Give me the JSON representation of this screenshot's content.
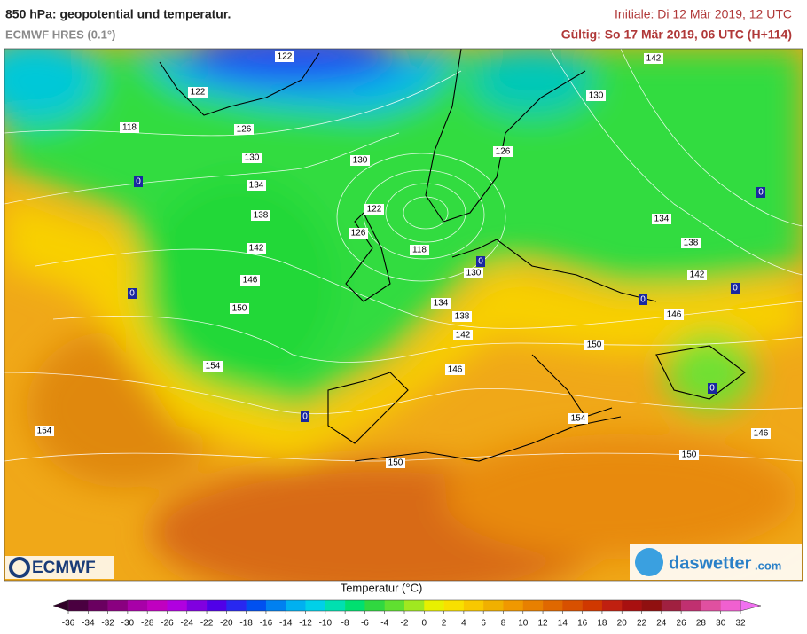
{
  "header": {
    "title": "850 hPa: geopotential und temperatur.",
    "subtitle": "ECMWF HRES (0.1°)",
    "initial": "Initiale: Di 12 Mär 2019, 12 UTC",
    "valid": "Gültig: So 17 Mär 2019, 06 UTC (H+114)"
  },
  "map": {
    "geopotential_labels": [
      122,
      142,
      122,
      130,
      118,
      126,
      126,
      130,
      130,
      134,
      122,
      138,
      134,
      126,
      118,
      138,
      142,
      130,
      142,
      146,
      134,
      150,
      138,
      146,
      142,
      150,
      154,
      146,
      154,
      154,
      146,
      150,
      150
    ],
    "isotherm_labels": [
      0,
      0,
      0,
      0,
      0,
      0,
      0,
      0
    ]
  },
  "colorbar": {
    "title": "Temperatur (°C)",
    "ticks": [
      -36,
      -34,
      -32,
      -30,
      -28,
      -26,
      -24,
      -22,
      -20,
      -18,
      -16,
      -14,
      -12,
      -10,
      -8,
      -6,
      -4,
      -2,
      0,
      2,
      4,
      6,
      8,
      10,
      12,
      14,
      16,
      18,
      20,
      22,
      24,
      26,
      28,
      30,
      32
    ],
    "colors": [
      "#4a0040",
      "#6a0060",
      "#8a0080",
      "#a800a8",
      "#c000c0",
      "#b000e0",
      "#8000e0",
      "#5000e8",
      "#2828f0",
      "#0050f0",
      "#0080f0",
      "#00b0f0",
      "#00d0e8",
      "#00e0b0",
      "#00e070",
      "#30d840",
      "#60e030",
      "#a0e820",
      "#e8f000",
      "#f8e000",
      "#f8c800",
      "#f0b000",
      "#f09800",
      "#e88000",
      "#e06800",
      "#d85000",
      "#d03800",
      "#c02010",
      "#a81010",
      "#901010",
      "#a02040",
      "#c03070",
      "#e050a0",
      "#f060d0"
    ],
    "under": "#300028",
    "over": "#f070f0"
  },
  "logos": {
    "ecmwf": "ECMWF",
    "daswetter": "daswetter",
    "domain": ".com"
  }
}
